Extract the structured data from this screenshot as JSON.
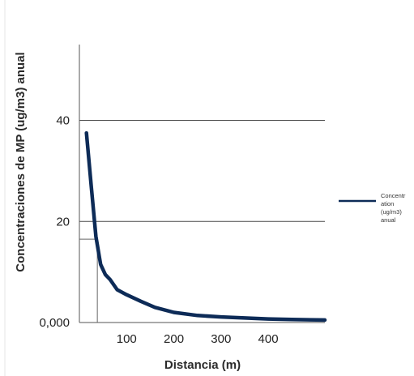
{
  "chart_data": {
    "type": "line",
    "title": "",
    "xlabel": "Distancia (m)",
    "ylabel": "Concentraciones de MP (ug/m3) anual",
    "xlim": [
      0,
      520
    ],
    "ylim": [
      0,
      55
    ],
    "x_ticks": [
      100,
      200,
      300,
      400
    ],
    "x_tick_labels": [
      "100",
      "200",
      "300",
      "400"
    ],
    "y_ticks": [
      0,
      20,
      40
    ],
    "y_tick_labels": [
      "0,000",
      "20",
      "40"
    ],
    "grid": true,
    "legend_position": "right",
    "series": [
      {
        "name": "Concentration (ug/m3) anual",
        "legend_lines": [
          "Concentr",
          "ation",
          "(ug/m3)",
          "anual"
        ],
        "color": "#0d2b57",
        "x": [
          15,
          25,
          35,
          45,
          55,
          65,
          80,
          100,
          130,
          160,
          200,
          250,
          300,
          350,
          400,
          450,
          520
        ],
        "y": [
          37.5,
          27,
          17,
          11.5,
          9.5,
          8.5,
          6.5,
          5.5,
          4.2,
          3.0,
          2.0,
          1.4,
          1.1,
          0.9,
          0.7,
          0.6,
          0.5
        ]
      }
    ],
    "reference_marker": {
      "x": 38,
      "y": 16.5
    }
  },
  "colors": {
    "series": "#0d2b57",
    "grid": "#4a4a4a"
  }
}
